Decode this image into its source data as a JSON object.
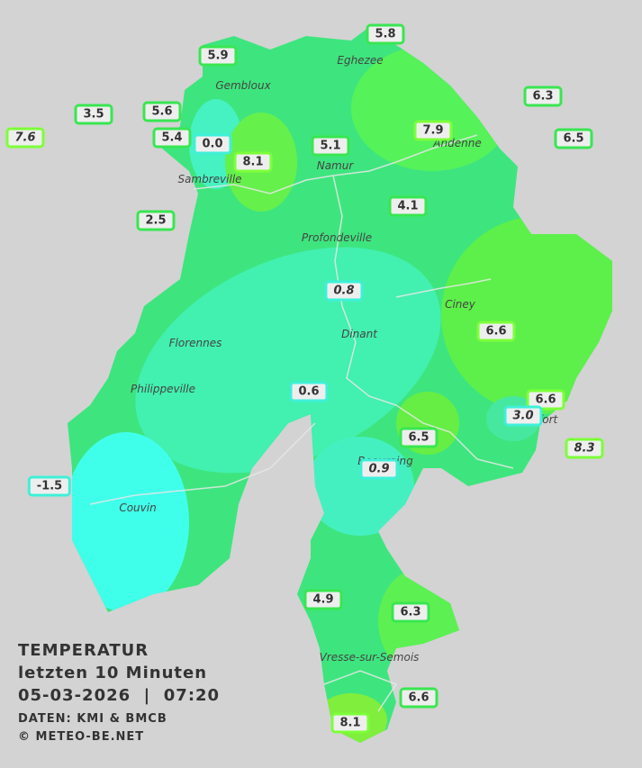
{
  "title": {
    "line1": "TEMPERATUR",
    "line2": "letzten 10 Minuten",
    "line3": "05-03-2026  |  07:20",
    "line4": "DATEN: KMI & BMCB",
    "line5": "© METEO-BE.NET"
  },
  "cities": [
    "Eghezee",
    "Gembloux",
    "Andenne",
    "Namur",
    "Sambreville",
    "Profondeville",
    "Ciney",
    "Dinant",
    "Florennes",
    "Philippeville",
    "Beauraing",
    "Rochefort",
    "Couvin",
    "Vresse-sur-Semois"
  ],
  "stations": [
    "5.8",
    "5.9",
    "3.5",
    "5.6",
    "6.3",
    "7.6",
    "5.4",
    "0.0",
    "5.1",
    "7.9",
    "6.5",
    "8.1",
    "4.1",
    "2.5",
    "0.8",
    "6.6",
    "0.6",
    "6.6",
    "3.0",
    "8.3",
    "6.5",
    "0.9",
    "-1.5",
    "4.9",
    "6.3",
    "6.6",
    "8.1"
  ]
}
